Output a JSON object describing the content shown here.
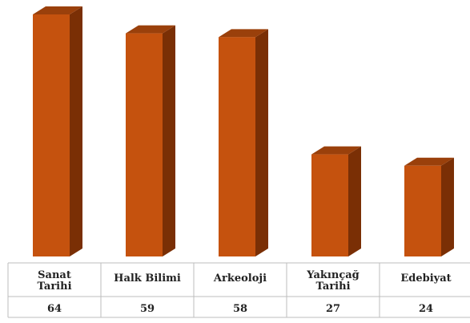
{
  "chart_data": {
    "type": "bar",
    "style": "3d-column",
    "categories": [
      [
        "Sanat",
        "Tarihi"
      ],
      [
        "Halk Bilimi"
      ],
      [
        "Arkeoloji"
      ],
      [
        "Yakınçağ",
        "Tarihi"
      ],
      [
        "Edebiyat"
      ]
    ],
    "values": [
      64,
      59,
      58,
      27,
      24
    ],
    "table_values": [
      "64",
      "59",
      "58",
      "27",
      "24"
    ],
    "title": "",
    "xlabel": "",
    "ylabel": "",
    "ylim": [
      0,
      64
    ],
    "grid": false,
    "legend": "none",
    "data_table": true,
    "colors": {
      "front": "#C5520E",
      "side": "#7A2F05",
      "top": "#9A400B",
      "table_border": "#bdbdbd"
    }
  }
}
